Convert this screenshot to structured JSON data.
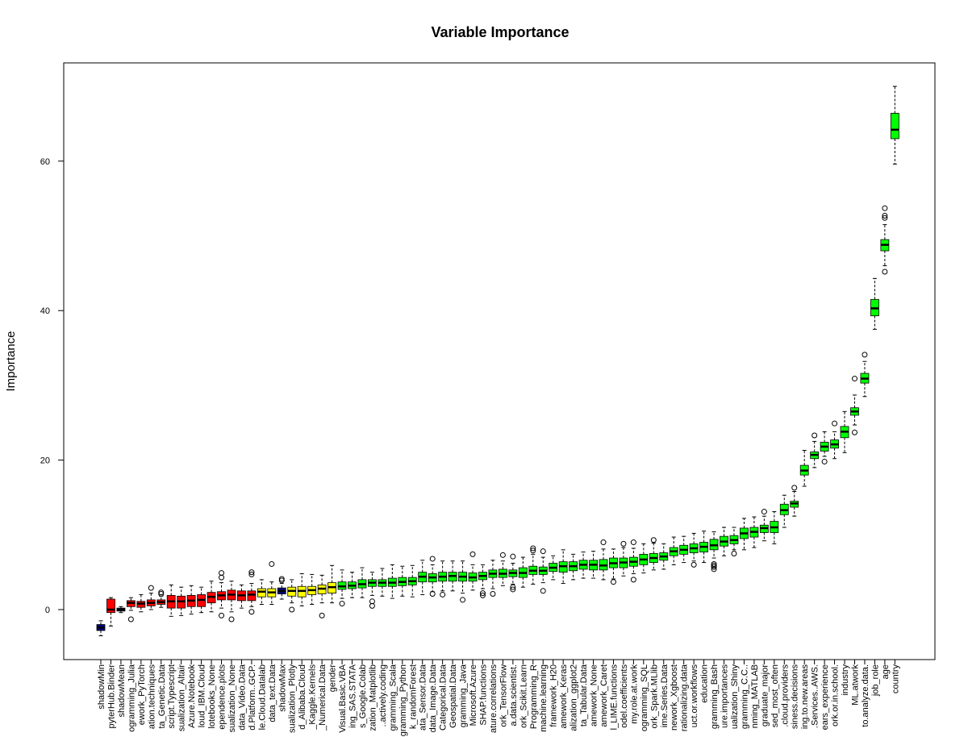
{
  "chart_data": {
    "type": "boxplot",
    "title": "Variable Importance",
    "y_label": "Importance",
    "categories": [
      "shadowMin",
      "pyterHub.Binder",
      "shadowMean",
      "ogramming_Julia",
      "ework_PyTorch",
      "ation.techniques",
      "ta_Genetic.Data",
      "script.Typescript",
      "sualization_Altair",
      "Azure.Notebook",
      "loud_IBM.Cloud",
      "lotebooks_None",
      "ependence.plots",
      "sualization_None",
      "data_Video.Data",
      "d.Platform..GCP.",
      "le.Cloud.Datalab",
      "data_text.Data",
      "shadowMax",
      "sualization_Plotly",
      "d_Alibaba.Cloud",
      "_Kaggle.Kernels",
      "_Numerical.Data",
      "gender",
      "Visual.Basic.VBA",
      "ing_SAS.STATA",
      "s_Google.Colab",
      "zation_Matplotlib",
      "..actively.coding",
      "gramming_Scala",
      "gramming_Python",
      "k_randomForest",
      "ata_Sensor.Data",
      "data_Image.Data",
      "Categorical.Data",
      "Geospatial.Data",
      "gramming_Java",
      "Microsoft.Azure",
      "SHAP.functions",
      "ature.correlations",
      "ork_TensorFlow",
      "a.data.scientist.",
      "ork_Scikit.Learn",
      "Programming_R",
      "machine.learning",
      "framework_H20",
      "amework_Keras",
      "alization_ggplot2",
      "ta_Tabular.Data",
      "amework_None",
      "amework_Caret",
      "l_LIME.functions",
      "odel.coefficients",
      "my.role.at.work",
      "ogramming_SQL",
      "ork_Spark.MLlib",
      "ime.Series.Data",
      "nework_Xgboost",
      "rationalizing.data",
      "uct.or.workflows",
      "education",
      "gramming_Bash",
      "ure.importances",
      "ualization_Shiny",
      "gramming_C.C..",
      "nming_MATLAB",
      "graduate_major",
      "sed_most_often",
      ".cloud.providers",
      "siness.decisions",
      "ing.to.new.areas",
      ".Services..AWS.",
      "ears_experience",
      "ork.or.in.school.",
      "industry",
      "ML.atwork",
      "to.analyze.data.",
      "job_role",
      "age",
      "country"
    ],
    "medians": [
      -2.4,
      0.0,
      0,
      0.9,
      0.8,
      0.9,
      1.0,
      1.1,
      1.1,
      1.2,
      1.3,
      1.7,
      1.9,
      2.0,
      1.9,
      2.0,
      2.4,
      2.3,
      2.5,
      2.5,
      2.5,
      2.6,
      2.8,
      3.0,
      3.1,
      3.2,
      3.4,
      3.6,
      3.6,
      3.6,
      3.7,
      3.8,
      4.4,
      4.3,
      4.4,
      4.5,
      4.4,
      4.3,
      4.5,
      4.8,
      4.8,
      4.9,
      4.9,
      5.2,
      5.2,
      5.6,
      5.8,
      5.8,
      6.0,
      6.0,
      5.9,
      6.2,
      6.3,
      6.4,
      6.7,
      6.9,
      7.1,
      7.8,
      8.0,
      8.2,
      8.4,
      8.6,
      9.1,
      9.3,
      10.2,
      10.4,
      10.9,
      11.0,
      13.3,
      14.2,
      18.6,
      20.7,
      21.8,
      22.1,
      23.8,
      26.5,
      30.9,
      40.3,
      48.8,
      64.2
    ],
    "q1": [
      -2.8,
      -0.4,
      -0.2,
      0.4,
      0.3,
      0.5,
      0.7,
      0.2,
      0.2,
      0.4,
      0.4,
      0.9,
      1.3,
      1.3,
      1.2,
      1.2,
      1.7,
      1.7,
      2.1,
      1.8,
      1.7,
      2.0,
      2.1,
      2.2,
      2.7,
      2.8,
      2.9,
      3.1,
      3.1,
      3.1,
      3.2,
      3.3,
      3.7,
      3.7,
      3.8,
      3.8,
      3.8,
      3.8,
      4.0,
      4.3,
      4.3,
      4.4,
      4.3,
      4.7,
      4.7,
      5.1,
      5.0,
      5.2,
      5.4,
      5.3,
      5.3,
      5.6,
      5.6,
      5.8,
      6.0,
      6.3,
      6.6,
      7.2,
      7.4,
      7.6,
      7.7,
      8.0,
      8.5,
      8.8,
      9.5,
      9.7,
      10.3,
      10.3,
      12.7,
      13.7,
      18.0,
      20.2,
      21.2,
      21.6,
      23.0,
      26.0,
      30.3,
      39.3,
      48.0,
      63.0
    ],
    "q3": [
      -2.0,
      1.4,
      0.2,
      1.2,
      1.1,
      1.3,
      1.3,
      1.9,
      1.8,
      1.9,
      2.0,
      2.3,
      2.4,
      2.6,
      2.5,
      2.5,
      2.8,
      2.8,
      2.9,
      3.0,
      3.1,
      3.1,
      3.3,
      3.6,
      3.7,
      3.7,
      4.0,
      4.0,
      4.0,
      4.2,
      4.3,
      4.3,
      5.0,
      4.8,
      5.0,
      5.0,
      5.0,
      4.9,
      5.0,
      5.3,
      5.4,
      5.3,
      5.6,
      5.8,
      5.7,
      6.2,
      6.4,
      6.4,
      6.6,
      6.6,
      6.7,
      6.9,
      6.9,
      7.0,
      7.4,
      7.5,
      7.6,
      8.3,
      8.6,
      8.8,
      9.0,
      9.4,
      9.8,
      9.9,
      10.9,
      11.0,
      11.3,
      11.8,
      14.1,
      14.5,
      19.3,
      21.1,
      22.4,
      22.7,
      24.5,
      27.0,
      31.6,
      41.5,
      49.5,
      66.4
    ],
    "whisker_low": [
      -3.5,
      -2.2,
      -0.4,
      -0.1,
      -0.3,
      0,
      0.3,
      -0.9,
      -0.8,
      -0.6,
      -0.4,
      -0.3,
      0.2,
      -0.3,
      0.2,
      0.4,
      0.7,
      0.7,
      1.4,
      0.9,
      0.5,
      0.7,
      0.9,
      0.9,
      1.5,
      1.6,
      1.6,
      1.9,
      1.8,
      1.5,
      1.8,
      1.7,
      2.0,
      2.4,
      2.5,
      2.5,
      2.2,
      2.6,
      2.8,
      2.8,
      3.2,
      3.4,
      3.0,
      3.4,
      3.6,
      4.0,
      3.5,
      4.0,
      4.2,
      4.2,
      4.0,
      4.1,
      4.5,
      4.8,
      4.9,
      5.3,
      5.4,
      6.0,
      6.3,
      6.5,
      6.3,
      6.9,
      7.2,
      8.0,
      8.0,
      8.3,
      9.2,
      8.8,
      11.0,
      12.5,
      16.5,
      19.0,
      20.5,
      20.2,
      21.0,
      24.7,
      28.5,
      37.5,
      46.0,
      59.6
    ],
    "whisker_high": [
      -1.5,
      1.6,
      0.4,
      1.6,
      2.0,
      2.2,
      1.8,
      3.3,
      3.0,
      3.2,
      3.0,
      3.8,
      3.6,
      3.8,
      3.3,
      3.5,
      4.0,
      3.7,
      3.5,
      4.0,
      4.8,
      4.7,
      4.6,
      5.9,
      5.3,
      5.0,
      5.6,
      5.0,
      5.5,
      6.0,
      5.8,
      5.9,
      6.6,
      6.0,
      6.5,
      6.5,
      6.5,
      6.0,
      6.0,
      6.6,
      6.5,
      6.2,
      7.0,
      7.4,
      7.0,
      7.2,
      8.0,
      7.4,
      7.7,
      7.8,
      8.1,
      8.1,
      8.3,
      8.2,
      8.8,
      8.9,
      8.8,
      9.7,
      9.8,
      10.2,
      10.5,
      10.4,
      11.0,
      11.0,
      12.2,
      12.4,
      12.5,
      13.1,
      15.3,
      15.8,
      21.3,
      22.5,
      23.8,
      23.8,
      26.5,
      28.7,
      33.2,
      44.3,
      51.5,
      70.0
    ],
    "outliers": [
      [],
      [],
      [],
      [
        -1.3
      ],
      [],
      [
        2.9
      ],
      [
        2.1,
        2.3
      ],
      [],
      [],
      [],
      [],
      [],
      [
        4.3,
        4.9,
        -0.8
      ],
      [
        -1.3
      ],
      [],
      [
        4.7,
        5.0,
        -0.3
      ],
      [],
      [
        6.1
      ],
      [
        3.9,
        4.1
      ],
      [
        0.0
      ],
      [],
      [],
      [
        -0.8
      ],
      [],
      [
        0.8
      ],
      [],
      [],
      [
        0.5,
        1.1
      ],
      [],
      [],
      [],
      [],
      [],
      [
        2.1,
        6.8
      ],
      [
        2.0
      ],
      [],
      [
        1.3
      ],
      [
        7.4
      ],
      [
        1.9,
        2.2
      ],
      [
        2.1
      ],
      [
        7.3
      ],
      [
        2.7,
        3.0,
        7.1
      ],
      [],
      [
        7.9,
        8.2
      ],
      [
        2.5,
        7.8
      ],
      [],
      [],
      [],
      [],
      [],
      [
        9.0
      ],
      [
        3.7
      ],
      [
        8.8
      ],
      [
        4.0,
        9.0
      ],
      [],
      [
        9.3
      ],
      [],
      [],
      [],
      [
        6.0
      ],
      [],
      [
        5.4,
        5.7,
        5.9,
        6.1
      ],
      [],
      [
        7.5
      ],
      [],
      [],
      [
        13.1
      ],
      [],
      [],
      [
        16.3
      ],
      [],
      [
        23.3
      ],
      [
        19.8
      ],
      [
        24.9
      ],
      [],
      [
        23.7,
        30.9
      ],
      [
        34.1
      ],
      [],
      [
        45.2,
        52.4,
        52.7,
        53.7
      ],
      []
    ],
    "colors": [
      "#000080",
      "#ff0000",
      "#000080",
      "#ff0000",
      "#ff0000",
      "#ff0000",
      "#ff0000",
      "#ff0000",
      "#ff0000",
      "#ff0000",
      "#ff0000",
      "#ff0000",
      "#ff0000",
      "#ff0000",
      "#ff0000",
      "#ff0000",
      "#ffff00",
      "#ffff00",
      "#000080",
      "#ffff00",
      "#ffff00",
      "#ffff00",
      "#ffff00",
      "#ffff00",
      "#00ff00",
      "#00ff00",
      "#00ff00",
      "#00ff00",
      "#00ff00",
      "#00ff00",
      "#00ff00",
      "#00ff00",
      "#00ff00",
      "#00ff00",
      "#00ff00",
      "#00ff00",
      "#00ff00",
      "#00ff00",
      "#00ff00",
      "#00ff00",
      "#00ff00",
      "#00ff00",
      "#00ff00",
      "#00ff00",
      "#00ff00",
      "#00ff00",
      "#00ff00",
      "#00ff00",
      "#00ff00",
      "#00ff00",
      "#00ff00",
      "#00ff00",
      "#00ff00",
      "#00ff00",
      "#00ff00",
      "#00ff00",
      "#00ff00",
      "#00ff00",
      "#00ff00",
      "#00ff00",
      "#00ff00",
      "#00ff00",
      "#00ff00",
      "#00ff00",
      "#00ff00",
      "#00ff00",
      "#00ff00",
      "#00ff00",
      "#00ff00",
      "#00ff00",
      "#00ff00",
      "#00ff00",
      "#00ff00",
      "#00ff00",
      "#00ff00",
      "#00ff00",
      "#00ff00",
      "#00ff00",
      "#00ff00",
      "#00ff00"
    ],
    "ylim": [
      -6.69,
      73.14
    ],
    "yticks": [
      0,
      20,
      40,
      60
    ]
  }
}
